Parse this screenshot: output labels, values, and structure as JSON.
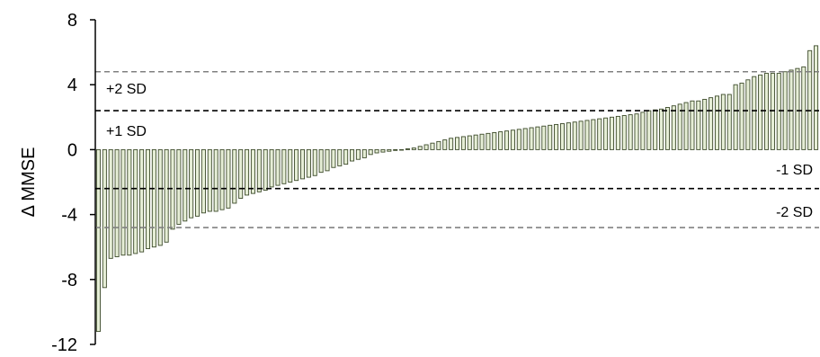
{
  "chart_data": {
    "type": "bar",
    "title": "",
    "xlabel": "",
    "ylabel": "Δ MMSE",
    "ylim": [
      -12,
      8
    ],
    "yticks": [
      8,
      4,
      0,
      -4,
      -8,
      -12
    ],
    "ytick_labels": [
      "8",
      "4",
      "0",
      "-4",
      "-8",
      "-12"
    ],
    "grid": false,
    "colors": {
      "bar_fill": "#e6eed6",
      "bar_stroke": "#3c4a2a",
      "sd1_line": "#000000",
      "sd2_line": "#808080"
    },
    "values": [
      -11.2,
      -8.5,
      -6.7,
      -6.6,
      -6.5,
      -6.5,
      -6.4,
      -6.3,
      -6.1,
      -6.0,
      -5.9,
      -5.7,
      -4.9,
      -4.6,
      -4.4,
      -4.2,
      -4.1,
      -3.9,
      -3.8,
      -3.8,
      -3.7,
      -3.6,
      -3.3,
      -3.0,
      -2.8,
      -2.7,
      -2.6,
      -2.5,
      -2.3,
      -2.2,
      -2.1,
      -2.0,
      -1.9,
      -1.8,
      -1.7,
      -1.6,
      -1.4,
      -1.3,
      -1.1,
      -1.0,
      -0.9,
      -0.7,
      -0.6,
      -0.5,
      -0.3,
      -0.2,
      -0.15,
      -0.1,
      -0.05,
      0.0,
      0.05,
      0.1,
      0.2,
      0.3,
      0.4,
      0.5,
      0.6,
      0.7,
      0.75,
      0.8,
      0.85,
      0.9,
      0.95,
      1.0,
      1.05,
      1.1,
      1.15,
      1.2,
      1.25,
      1.3,
      1.35,
      1.4,
      1.45,
      1.5,
      1.55,
      1.6,
      1.65,
      1.7,
      1.75,
      1.8,
      1.85,
      1.9,
      1.95,
      2.0,
      2.05,
      2.1,
      2.15,
      2.2,
      2.3,
      2.4,
      2.45,
      2.5,
      2.6,
      2.7,
      2.8,
      2.9,
      3.0,
      3.0,
      3.1,
      3.2,
      3.3,
      3.4,
      3.4,
      4.0,
      4.1,
      4.3,
      4.5,
      4.6,
      4.7,
      4.7,
      4.7,
      4.8,
      4.9,
      5.0,
      5.1,
      6.1,
      6.4
    ],
    "reference_lines": [
      {
        "name": "+2 SD",
        "value": 4.8,
        "style": "dashed",
        "color": "#808080"
      },
      {
        "name": "+1 SD",
        "value": 2.4,
        "style": "dashed",
        "color": "#000000"
      },
      {
        "name": "-1 SD",
        "value": -2.4,
        "style": "dashed",
        "color": "#000000"
      },
      {
        "name": "-2 SD",
        "value": -4.8,
        "style": "dashed",
        "color": "#808080"
      }
    ]
  }
}
